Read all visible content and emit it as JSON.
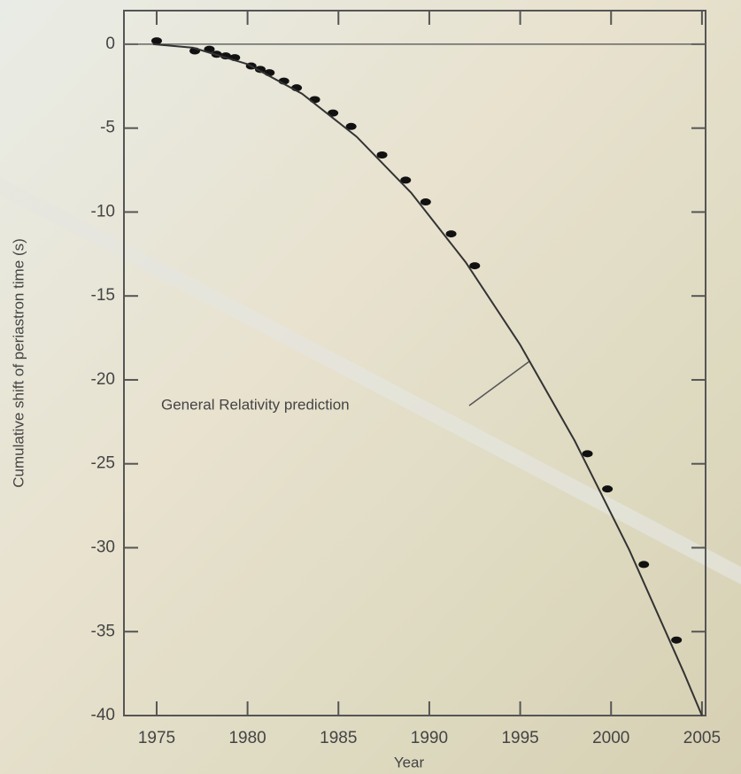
{
  "chart_data": {
    "type": "scatter",
    "x_label": "Year",
    "y_label": "Cumulative shift of periastron time (s)",
    "annotation": "General Relativity prediction",
    "xlim": [
      1973.2,
      2005.2
    ],
    "ylim": [
      -40,
      2
    ],
    "xticks": [
      1975,
      1980,
      1985,
      1990,
      1995,
      2000,
      2005
    ],
    "yticks": [
      0,
      -5,
      -10,
      -15,
      -20,
      -25,
      -30,
      -35,
      -40
    ],
    "series": [
      {
        "color": "#111111",
        "line": false,
        "x": [
          1975.0,
          1977.1,
          1977.9,
          1978.3,
          1978.8,
          1979.3,
          1980.2,
          1980.7,
          1981.2,
          1982.0,
          1982.7,
          1983.7,
          1984.7,
          1985.7,
          1987.4,
          1988.7,
          1989.8,
          1991.2,
          1992.5,
          1998.7,
          1999.8,
          2001.8,
          2003.6
        ],
        "values": [
          0.2,
          -0.4,
          -0.3,
          -0.6,
          -0.7,
          -0.8,
          -1.3,
          -1.5,
          -1.7,
          -2.2,
          -2.6,
          -3.3,
          -4.1,
          -4.9,
          -6.6,
          -8.1,
          -9.4,
          -11.3,
          -13.2,
          -24.4,
          -26.5,
          -31.0,
          -35.5
        ]
      },
      {
        "color": "#333333",
        "line": true,
        "x": [
          1974.8,
          1977,
          1980,
          1983,
          1986,
          1989,
          1992,
          1995,
          1998,
          2001,
          2004,
          2005
        ],
        "values": [
          0,
          -0.21,
          -1.19,
          -2.95,
          -5.51,
          -8.85,
          -12.99,
          -17.91,
          -23.63,
          -30.13,
          -37.43,
          -40
        ]
      }
    ]
  }
}
